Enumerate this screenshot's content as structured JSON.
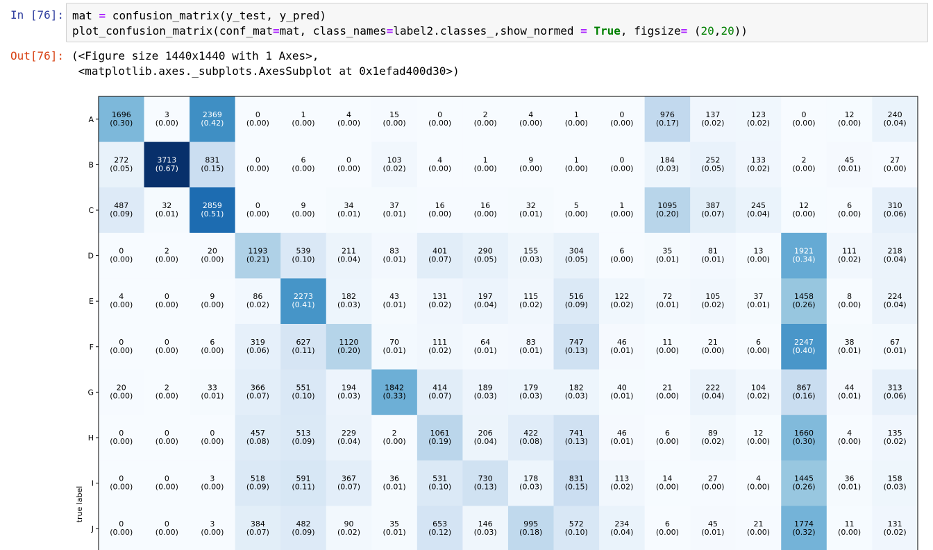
{
  "input_prompt": "In [76]:",
  "output_prompt": "Out[76]:",
  "code": {
    "line1": {
      "a": "mat ",
      "op": "=",
      "b": " confusion_matrix(y_test, y_pred)"
    },
    "line2": {
      "a": "plot_confusion_matrix(conf_mat",
      "op1": "=",
      "b": "mat, class_names",
      "op2": "=",
      "c": "label2.classes_,show_normed ",
      "op3": "=",
      "d": " ",
      "kw": "True",
      "e": ", figsize",
      "op4": "=",
      "f": " (",
      "n1": "20",
      "g": ",",
      "n2": "20",
      "h": "))"
    }
  },
  "output_lines": [
    "(<Figure size 1440x1440 with 1 Axes>,",
    " <matplotlib.axes._subplots.AxesSubplot at 0x1efad400d30>)"
  ],
  "chart_data": {
    "type": "heatmap",
    "colormap": "Blues",
    "ylabel": "true label",
    "row_labels": [
      "A",
      "B",
      "C",
      "D",
      "E",
      "F",
      "G",
      "H",
      "I",
      "J"
    ],
    "counts": [
      [
        1696,
        3,
        2369,
        0,
        1,
        4,
        15,
        0,
        2,
        4,
        1,
        0,
        976,
        137,
        123,
        0,
        12,
        240
      ],
      [
        272,
        3713,
        831,
        0,
        6,
        0,
        103,
        4,
        1,
        9,
        1,
        0,
        184,
        252,
        133,
        2,
        45,
        27
      ],
      [
        487,
        32,
        2859,
        0,
        9,
        34,
        37,
        16,
        16,
        32,
        5,
        1,
        1095,
        387,
        245,
        12,
        6,
        310
      ],
      [
        0,
        2,
        20,
        1193,
        539,
        211,
        83,
        401,
        290,
        155,
        304,
        6,
        35,
        81,
        13,
        1921,
        111,
        218
      ],
      [
        4,
        0,
        9,
        86,
        2273,
        182,
        43,
        131,
        197,
        115,
        516,
        122,
        72,
        105,
        37,
        1458,
        8,
        224
      ],
      [
        0,
        0,
        6,
        319,
        627,
        1120,
        70,
        111,
        64,
        83,
        747,
        46,
        11,
        21,
        6,
        2247,
        38,
        67
      ],
      [
        20,
        2,
        33,
        366,
        551,
        194,
        1842,
        414,
        189,
        179,
        182,
        40,
        21,
        222,
        104,
        867,
        44,
        313
      ],
      [
        0,
        0,
        0,
        457,
        513,
        229,
        2,
        1061,
        206,
        422,
        741,
        46,
        6,
        89,
        12,
        1660,
        4,
        135
      ],
      [
        0,
        0,
        3,
        518,
        591,
        367,
        36,
        531,
        730,
        178,
        831,
        113,
        14,
        27,
        4,
        1445,
        36,
        158
      ],
      [
        0,
        0,
        3,
        384,
        482,
        90,
        35,
        653,
        146,
        995,
        572,
        234,
        6,
        45,
        21,
        1774,
        11,
        131
      ]
    ],
    "normed": [
      [
        "0.30",
        "0.00",
        "0.42",
        "0.00",
        "0.00",
        "0.00",
        "0.00",
        "0.00",
        "0.00",
        "0.00",
        "0.00",
        "0.00",
        "0.17",
        "0.02",
        "0.02",
        "0.00",
        "0.00",
        "0.04"
      ],
      [
        "0.05",
        "0.67",
        "0.15",
        "0.00",
        "0.00",
        "0.00",
        "0.02",
        "0.00",
        "0.00",
        "0.00",
        "0.00",
        "0.00",
        "0.03",
        "0.05",
        "0.02",
        "0.00",
        "0.01",
        "0.00"
      ],
      [
        "0.09",
        "0.01",
        "0.51",
        "0.00",
        "0.00",
        "0.01",
        "0.01",
        "0.00",
        "0.00",
        "0.01",
        "0.00",
        "0.00",
        "0.20",
        "0.07",
        "0.04",
        "0.00",
        "0.00",
        "0.06"
      ],
      [
        "0.00",
        "0.00",
        "0.00",
        "0.21",
        "0.10",
        "0.04",
        "0.01",
        "0.07",
        "0.05",
        "0.03",
        "0.05",
        "0.00",
        "0.01",
        "0.01",
        "0.00",
        "0.34",
        "0.02",
        "0.04"
      ],
      [
        "0.00",
        "0.00",
        "0.00",
        "0.02",
        "0.41",
        "0.03",
        "0.01",
        "0.02",
        "0.04",
        "0.02",
        "0.09",
        "0.02",
        "0.01",
        "0.02",
        "0.01",
        "0.26",
        "0.00",
        "0.04"
      ],
      [
        "0.00",
        "0.00",
        "0.00",
        "0.06",
        "0.11",
        "0.20",
        "0.01",
        "0.02",
        "0.01",
        "0.01",
        "0.13",
        "0.01",
        "0.00",
        "0.00",
        "0.00",
        "0.40",
        "0.01",
        "0.01"
      ],
      [
        "0.00",
        "0.00",
        "0.01",
        "0.07",
        "0.10",
        "0.03",
        "0.33",
        "0.07",
        "0.03",
        "0.03",
        "0.03",
        "0.01",
        "0.00",
        "0.04",
        "0.02",
        "0.16",
        "0.01",
        "0.06"
      ],
      [
        "0.00",
        "0.00",
        "0.00",
        "0.08",
        "0.09",
        "0.04",
        "0.00",
        "0.19",
        "0.04",
        "0.08",
        "0.13",
        "0.01",
        "0.00",
        "0.02",
        "0.00",
        "0.30",
        "0.00",
        "0.02"
      ],
      [
        "0.00",
        "0.00",
        "0.00",
        "0.09",
        "0.11",
        "0.07",
        "0.01",
        "0.10",
        "0.13",
        "0.03",
        "0.15",
        "0.02",
        "0.00",
        "0.00",
        "0.00",
        "0.26",
        "0.01",
        "0.03"
      ],
      [
        "0.00",
        "0.00",
        "0.00",
        "0.07",
        "0.09",
        "0.02",
        "0.01",
        "0.12",
        "0.03",
        "0.18",
        "0.10",
        "0.04",
        "0.00",
        "0.01",
        "0.00",
        "0.32",
        "0.00",
        "0.02"
      ]
    ]
  }
}
